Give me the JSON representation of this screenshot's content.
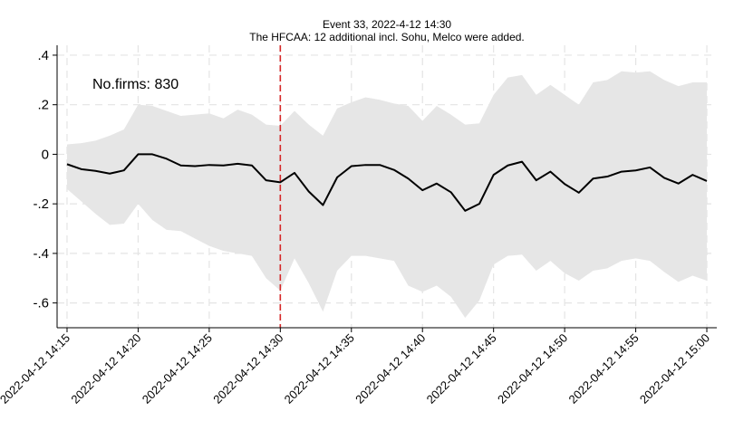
{
  "chart_data": {
    "type": "line",
    "title": "Event 33, 2022-4-12 14:30",
    "subtitle": "The HFCAA: 12 additional incl. Sohu, Melco were added.",
    "annotation": "No.firms: 830",
    "event_marker_minute": 15,
    "x_start": "2022-04-12 14:15",
    "x_ticks": [
      {
        "minute": 0,
        "label": "2022-04-12 14:15"
      },
      {
        "minute": 5,
        "label": "2022-04-12 14:20"
      },
      {
        "minute": 10,
        "label": "2022-04-12 14:25"
      },
      {
        "minute": 15,
        "label": "2022-04-12 14:30"
      },
      {
        "minute": 20,
        "label": "2022-04-12 14:35"
      },
      {
        "minute": 25,
        "label": "2022-04-12 14:40"
      },
      {
        "minute": 30,
        "label": "2022-04-12 14:45"
      },
      {
        "minute": 35,
        "label": "2022-04-12 14:50"
      },
      {
        "minute": 40,
        "label": "2022-04-12 14:55"
      },
      {
        "minute": 45,
        "label": "2022-04-12 15:00"
      }
    ],
    "y_ticks": [
      {
        "value": 0.4,
        "label": ".4"
      },
      {
        "value": 0.2,
        "label": ".2"
      },
      {
        "value": 0.0,
        "label": "0"
      },
      {
        "value": -0.2,
        "label": "-.2"
      },
      {
        "value": -0.4,
        "label": "-.4"
      },
      {
        "value": -0.6,
        "label": "-.6"
      }
    ],
    "ylim": [
      -0.7,
      0.44
    ],
    "xlim": [
      -0.7,
      45.7
    ],
    "grid": true,
    "colors": {
      "line": "#000000",
      "band": "#e6e6e6",
      "event_line": "#d62728",
      "grid": "#e4e4e4"
    },
    "series": [
      {
        "values": [
          -0.04,
          -0.06,
          -0.067,
          -0.078,
          -0.065,
          0.0,
          0.0,
          -0.018,
          -0.045,
          -0.048,
          -0.043,
          -0.045,
          -0.038,
          -0.045,
          -0.105,
          -0.113,
          -0.075,
          -0.15,
          -0.205,
          -0.093,
          -0.048,
          -0.043,
          -0.043,
          -0.063,
          -0.098,
          -0.145,
          -0.118,
          -0.153,
          -0.228,
          -0.2,
          -0.083,
          -0.045,
          -0.03,
          -0.105,
          -0.07,
          -0.12,
          -0.155,
          -0.098,
          -0.09,
          -0.07,
          -0.065,
          -0.053,
          -0.095,
          -0.118,
          -0.083,
          -0.108
        ]
      },
      {
        "upper": [
          0.04,
          0.045,
          0.055,
          0.075,
          0.1,
          0.2,
          0.195,
          0.175,
          0.155,
          0.16,
          0.165,
          0.145,
          0.18,
          0.16,
          0.12,
          0.115,
          0.175,
          0.12,
          0.075,
          0.185,
          0.21,
          0.23,
          0.22,
          0.205,
          0.195,
          0.135,
          0.195,
          0.16,
          0.12,
          0.125,
          0.24,
          0.31,
          0.32,
          0.24,
          0.28,
          0.24,
          0.2,
          0.29,
          0.3,
          0.335,
          0.33,
          0.335,
          0.3,
          0.275,
          0.29,
          0.29
        ],
        "lower": [
          -0.14,
          -0.19,
          -0.24,
          -0.285,
          -0.28,
          -0.2,
          -0.265,
          -0.305,
          -0.31,
          -0.34,
          -0.37,
          -0.39,
          -0.4,
          -0.41,
          -0.5,
          -0.55,
          -0.42,
          -0.52,
          -0.635,
          -0.47,
          -0.41,
          -0.41,
          -0.42,
          -0.43,
          -0.53,
          -0.555,
          -0.53,
          -0.575,
          -0.66,
          -0.59,
          -0.445,
          -0.41,
          -0.405,
          -0.47,
          -0.43,
          -0.48,
          -0.51,
          -0.47,
          -0.46,
          -0.43,
          -0.42,
          -0.43,
          -0.475,
          -0.515,
          -0.49,
          -0.51
        ]
      }
    ]
  }
}
